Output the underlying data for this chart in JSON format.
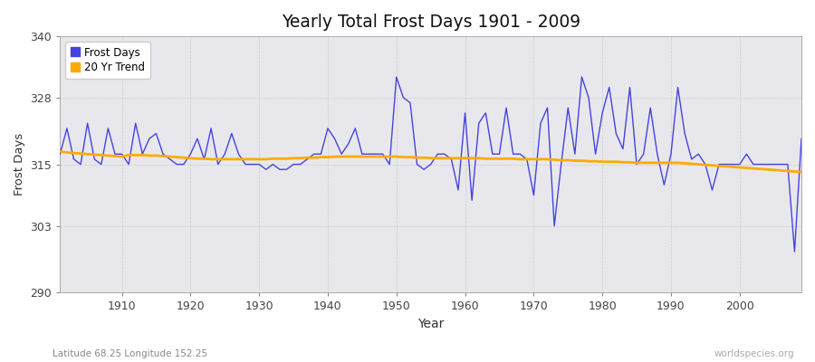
{
  "title": "Yearly Total Frost Days 1901 - 2009",
  "ylabel": "Frost Days",
  "xlabel": "Year",
  "bottom_left_text": "Latitude 68.25 Longitude 152.25",
  "bottom_right_text": "worldspecies.org",
  "legend_labels": [
    "Frost Days",
    "20 Yr Trend"
  ],
  "frost_color": "#4444dd",
  "trend_color": "#ffaa00",
  "bg_color": "#e8e8ec",
  "fig_bg_color": "#ffffff",
  "ylim": [
    290,
    340
  ],
  "xlim": [
    1901,
    2009
  ],
  "yticks": [
    290,
    303,
    315,
    328,
    340
  ],
  "xticks": [
    1910,
    1920,
    1930,
    1940,
    1950,
    1960,
    1970,
    1980,
    1990,
    2000
  ],
  "years": [
    1901,
    1902,
    1903,
    1904,
    1905,
    1906,
    1907,
    1908,
    1909,
    1910,
    1911,
    1912,
    1913,
    1914,
    1915,
    1916,
    1917,
    1918,
    1919,
    1920,
    1921,
    1922,
    1923,
    1924,
    1925,
    1926,
    1927,
    1928,
    1929,
    1930,
    1931,
    1932,
    1933,
    1934,
    1935,
    1936,
    1937,
    1938,
    1939,
    1940,
    1941,
    1942,
    1943,
    1944,
    1945,
    1946,
    1947,
    1948,
    1949,
    1950,
    1951,
    1952,
    1953,
    1954,
    1955,
    1956,
    1957,
    1958,
    1959,
    1960,
    1961,
    1962,
    1963,
    1964,
    1965,
    1966,
    1967,
    1968,
    1969,
    1970,
    1971,
    1972,
    1973,
    1974,
    1975,
    1976,
    1977,
    1978,
    1979,
    1980,
    1981,
    1982,
    1983,
    1984,
    1985,
    1986,
    1987,
    1988,
    1989,
    1990,
    1991,
    1992,
    1993,
    1994,
    1995,
    1996,
    1997,
    1998,
    1999,
    2000,
    2001,
    2002,
    2003,
    2004,
    2005,
    2006,
    2007,
    2008,
    2009
  ],
  "frost_days": [
    317,
    322,
    316,
    315,
    323,
    316,
    315,
    322,
    317,
    317,
    315,
    323,
    317,
    320,
    321,
    317,
    316,
    315,
    315,
    317,
    320,
    316,
    322,
    315,
    317,
    321,
    317,
    315,
    315,
    315,
    314,
    315,
    314,
    314,
    315,
    315,
    316,
    317,
    317,
    322,
    320,
    317,
    319,
    322,
    317,
    317,
    317,
    317,
    315,
    332,
    328,
    327,
    315,
    314,
    315,
    317,
    317,
    316,
    310,
    325,
    308,
    323,
    325,
    317,
    317,
    326,
    317,
    317,
    316,
    309,
    323,
    326,
    303,
    315,
    326,
    317,
    332,
    328,
    317,
    325,
    330,
    321,
    318,
    330,
    315,
    317,
    326,
    317,
    311,
    317,
    330,
    321,
    316,
    317,
    315,
    310,
    315,
    315,
    315,
    315,
    317,
    315,
    315,
    315,
    315,
    315,
    315,
    298,
    320
  ],
  "trend": [
    317.5,
    317.3,
    317.2,
    317.1,
    317.0,
    316.9,
    316.8,
    316.7,
    316.6,
    316.5,
    316.8,
    316.8,
    316.8,
    316.7,
    316.7,
    316.6,
    316.5,
    316.4,
    316.3,
    316.2,
    316.1,
    316.1,
    316.0,
    316.0,
    316.0,
    316.0,
    316.0,
    316.0,
    316.0,
    316.0,
    316.0,
    316.1,
    316.1,
    316.1,
    316.2,
    316.2,
    316.3,
    316.3,
    316.4,
    316.4,
    316.5,
    316.5,
    316.5,
    316.5,
    316.5,
    316.5,
    316.5,
    316.5,
    316.5,
    316.5,
    316.4,
    316.4,
    316.3,
    316.3,
    316.2,
    316.2,
    316.2,
    316.2,
    316.2,
    316.2,
    316.2,
    316.2,
    316.1,
    316.1,
    316.1,
    316.1,
    316.1,
    316.0,
    316.0,
    316.0,
    316.0,
    316.0,
    315.9,
    315.8,
    315.8,
    315.7,
    315.7,
    315.6,
    315.6,
    315.5,
    315.5,
    315.5,
    315.4,
    315.4,
    315.3,
    315.3,
    315.3,
    315.3,
    315.3,
    315.3,
    315.3,
    315.2,
    315.1,
    315.0,
    314.9,
    314.8,
    314.7,
    314.6,
    314.5,
    314.4,
    314.3,
    314.2,
    314.1,
    314.0,
    313.9,
    313.8,
    313.7,
    313.6,
    313.5
  ]
}
